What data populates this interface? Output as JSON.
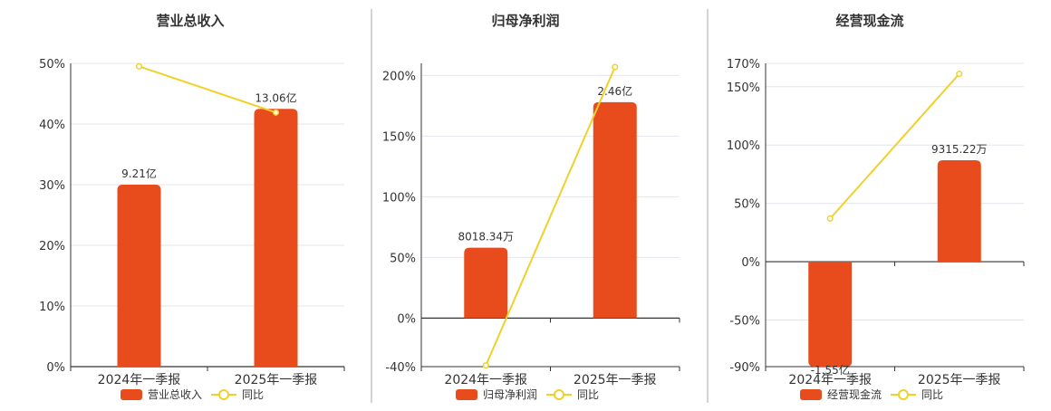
{
  "colors": {
    "bar": "#E84C1C",
    "line": "#F0D12A",
    "grid": "#E4E4EE",
    "axis": "#333333",
    "divider": "#AAAAAA",
    "text": "#333333"
  },
  "legend": {
    "yoy_label": "同比"
  },
  "chart_data": [
    {
      "type": "bar",
      "title": "营业总收入",
      "categories": [
        "2024年一季报",
        "2025年一季报"
      ],
      "series": [
        {
          "name": "营业总收入",
          "values": [
            9.21,
            13.06
          ],
          "labels": [
            "9.21亿",
            "13.06亿"
          ]
        },
        {
          "name": "同比",
          "type": "line",
          "values": [
            49.5,
            41.9
          ]
        }
      ],
      "y_ticks": [
        0,
        10,
        20,
        30,
        40,
        50
      ],
      "y_tick_labels": [
        "0%",
        "10%",
        "20%",
        "30%",
        "40%",
        "50%"
      ],
      "ylim": [
        0,
        50
      ],
      "bar_pct": [
        30,
        42.5
      ]
    },
    {
      "type": "bar",
      "title": "归母净利润",
      "categories": [
        "2024年一季报",
        "2025年一季报"
      ],
      "series": [
        {
          "name": "归母净利润",
          "values": [
            0.8018,
            2.46
          ],
          "labels": [
            "8018.34万",
            "2.46亿"
          ]
        },
        {
          "name": "同比",
          "type": "line",
          "values": [
            -39,
            207
          ]
        }
      ],
      "y_ticks": [
        -40,
        0,
        50,
        100,
        150,
        200
      ],
      "y_tick_labels": [
        "-40%",
        "0%",
        "50%",
        "100%",
        "150%",
        "200%"
      ],
      "ylim": [
        -40,
        210
      ],
      "bar_pct": [
        58,
        178
      ]
    },
    {
      "type": "bar",
      "title": "经营现金流",
      "categories": [
        "2024年一季报",
        "2025年一季报"
      ],
      "series": [
        {
          "name": "经营现金流",
          "values": [
            -1.55,
            0.9315
          ],
          "labels": [
            "-1.55亿",
            "9315.22万"
          ]
        },
        {
          "name": "同比",
          "type": "line",
          "values": [
            37,
            161
          ]
        }
      ],
      "y_ticks": [
        -90,
        -50,
        0,
        50,
        100,
        150,
        170
      ],
      "y_tick_labels": [
        "-90%",
        "-50%",
        "0%",
        "50%",
        "100%",
        "150%",
        "170%"
      ],
      "ylim": [
        -90,
        170
      ],
      "bar_pct": [
        -90,
        87
      ]
    }
  ]
}
